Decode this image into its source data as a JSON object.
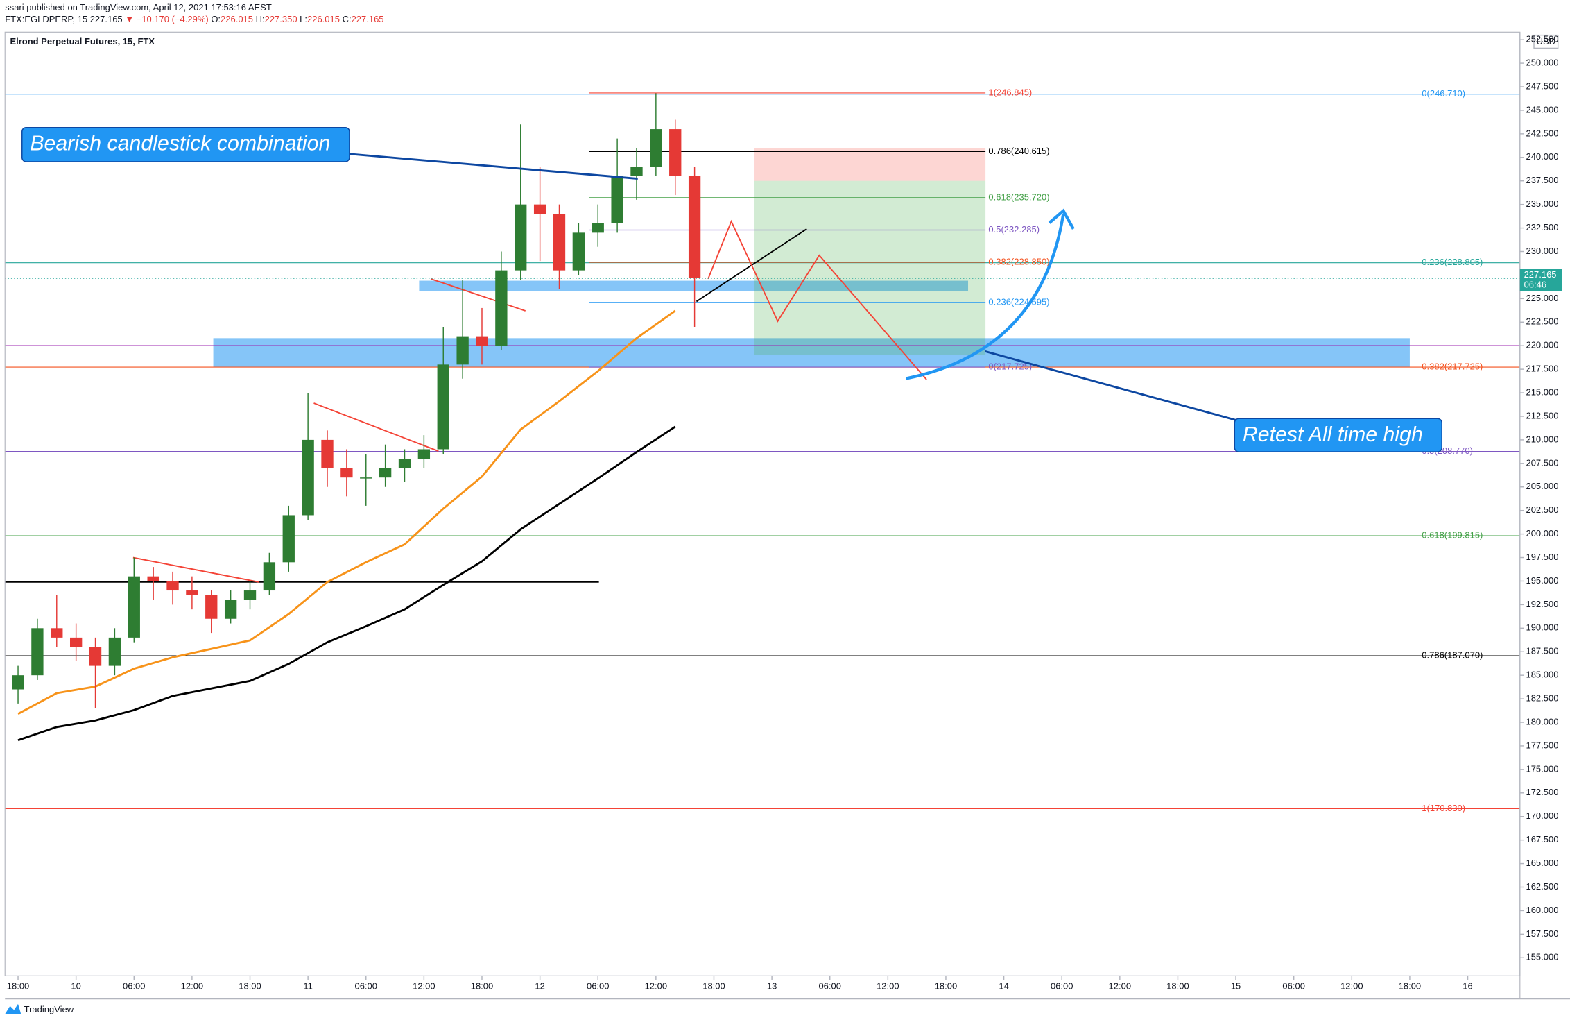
{
  "header": {
    "publisher": "ssari published on TradingView.com, April 12, 2021 17:53:16 AEST",
    "symbol": "FTX:EGLDPERP, 15",
    "price": "227.165",
    "change": "▼ −10.170 (−4.29%)",
    "ohlc": [
      {
        "label": "O:",
        "value": "226.015"
      },
      {
        "label": "H:",
        "value": "227.350"
      },
      {
        "label": "L:",
        "value": "226.015"
      },
      {
        "label": "C:",
        "value": "227.165"
      }
    ]
  },
  "footer": {
    "brand": "TradingView"
  },
  "chart_data": {
    "type": "candlestick",
    "title": "Elrond Perpetual Futures, 15, FTX",
    "currency": "USD",
    "last_price": 227.165,
    "countdown": "06:46",
    "up_color": "#2e7d32",
    "down_color": "#e53935",
    "x": [
      18,
      20,
      22,
      24,
      26,
      28,
      30,
      32,
      34,
      36,
      38,
      40,
      42,
      44,
      46,
      48,
      50,
      52,
      54,
      56,
      58,
      60,
      62,
      64,
      66,
      68,
      70,
      72,
      74,
      76,
      78,
      80,
      82,
      84,
      86,
      88
    ],
    "open": [
      183.5,
      185,
      190,
      189,
      188,
      186,
      189,
      195.5,
      195,
      194,
      193.5,
      191,
      193,
      194,
      197,
      202,
      210,
      207,
      206,
      206,
      207,
      208,
      209,
      218,
      221,
      220,
      228,
      235,
      234,
      228,
      232,
      233,
      238,
      239,
      243,
      238
    ],
    "high": [
      186,
      191,
      193.5,
      190.5,
      189,
      190,
      197.5,
      196.5,
      196,
      195.5,
      194,
      194,
      195,
      198,
      203,
      215,
      211,
      209,
      208.5,
      209.5,
      209,
      210.5,
      222,
      227,
      224,
      230,
      243.5,
      239,
      235,
      233,
      235,
      242,
      241,
      246.8,
      244,
      239
    ],
    "low": [
      182,
      184.5,
      188,
      186.5,
      181.5,
      185,
      188.5,
      193,
      192.5,
      192,
      189.5,
      190.5,
      192,
      193.5,
      196,
      201.5,
      205,
      204,
      203,
      205,
      205.5,
      207,
      208.5,
      216.5,
      218,
      219.5,
      227,
      229,
      226,
      227.5,
      230.5,
      232,
      235.5,
      238,
      236,
      222
    ],
    "close": [
      185,
      190,
      189,
      188,
      186,
      189,
      195.5,
      195,
      194,
      193.5,
      191,
      193,
      194,
      197,
      202,
      210,
      207,
      206,
      206,
      207,
      208,
      209,
      218,
      221,
      220,
      228,
      235,
      234,
      228,
      232,
      233,
      238,
      239,
      243,
      238,
      227.165
    ],
    "xlim": [
      16.65,
      173.4
    ],
    "ylim": [
      153.08,
      253.3
    ],
    "xticks": [
      {
        "value": 18,
        "label": "18:00"
      },
      {
        "value": 24,
        "label": "10"
      },
      {
        "value": 30,
        "label": "06:00"
      },
      {
        "value": 36,
        "label": "12:00"
      },
      {
        "value": 42,
        "label": "18:00"
      },
      {
        "value": 48,
        "label": "11"
      },
      {
        "value": 54,
        "label": "06:00"
      },
      {
        "value": 60,
        "label": "12:00"
      },
      {
        "value": 66,
        "label": "18:00"
      },
      {
        "value": 72,
        "label": "12"
      },
      {
        "value": 78,
        "label": "06:00"
      },
      {
        "value": 84,
        "label": "12:00"
      },
      {
        "value": 90,
        "label": "18:00"
      },
      {
        "value": 96,
        "label": "13"
      },
      {
        "value": 102,
        "label": "06:00"
      },
      {
        "value": 108,
        "label": "12:00"
      },
      {
        "value": 114,
        "label": "18:00"
      },
      {
        "value": 120,
        "label": "14"
      },
      {
        "value": 126,
        "label": "06:00"
      },
      {
        "value": 132,
        "label": "12:00"
      },
      {
        "value": 138,
        "label": "18:00"
      },
      {
        "value": 144,
        "label": "15"
      },
      {
        "value": 150,
        "label": "06:00"
      },
      {
        "value": 156,
        "label": "12:00"
      },
      {
        "value": 162,
        "label": "18:00"
      },
      {
        "value": 168,
        "label": "16"
      }
    ],
    "yticks": [
      {
        "value": 155,
        "label": "155.000"
      },
      {
        "value": 157.5,
        "label": "157.500"
      },
      {
        "value": 160,
        "label": "160.000"
      },
      {
        "value": 162.5,
        "label": "162.500"
      },
      {
        "value": 165,
        "label": "165.000"
      },
      {
        "value": 167.5,
        "label": "167.500"
      },
      {
        "value": 170,
        "label": "170.000"
      },
      {
        "value": 172.5,
        "label": "172.500"
      },
      {
        "value": 175,
        "label": "175.000"
      },
      {
        "value": 177.5,
        "label": "177.500"
      },
      {
        "value": 180,
        "label": "180.000"
      },
      {
        "value": 182.5,
        "label": "182.500"
      },
      {
        "value": 185,
        "label": "185.000"
      },
      {
        "value": 187.5,
        "label": "187.500"
      },
      {
        "value": 190,
        "label": "190.000"
      },
      {
        "value": 192.5,
        "label": "192.500"
      },
      {
        "value": 195,
        "label": "195.000"
      },
      {
        "value": 197.5,
        "label": "197.500"
      },
      {
        "value": 200,
        "label": "200.000"
      },
      {
        "value": 202.5,
        "label": "202.500"
      },
      {
        "value": 205,
        "label": "205.000"
      },
      {
        "value": 207.5,
        "label": "207.500"
      },
      {
        "value": 210,
        "label": "210.000"
      },
      {
        "value": 212.5,
        "label": "212.500"
      },
      {
        "value": 215,
        "label": "215.000"
      },
      {
        "value": 217.5,
        "label": "217.500"
      },
      {
        "value": 220,
        "label": "220.000"
      },
      {
        "value": 222.5,
        "label": "222.500"
      },
      {
        "value": 225,
        "label": "225.000"
      },
      {
        "value": 227.5,
        "label": "227.500"
      },
      {
        "value": 230,
        "label": "230.000"
      },
      {
        "value": 232.5,
        "label": "232.500"
      },
      {
        "value": 235,
        "label": "235.000"
      },
      {
        "value": 237.5,
        "label": "237.500"
      },
      {
        "value": 240,
        "label": "240.000"
      },
      {
        "value": 242.5,
        "label": "242.500"
      },
      {
        "value": 245,
        "label": "245.000"
      },
      {
        "value": 247.5,
        "label": "247.500"
      },
      {
        "value": 250,
        "label": "250.000"
      },
      {
        "value": 252.5,
        "label": "252.500"
      }
    ],
    "moving_averages": [
      {
        "color": "#f7931a",
        "x": [
          18,
          22,
          26,
          30,
          34,
          38,
          42,
          46,
          50,
          54,
          58,
          62,
          66,
          70,
          74,
          78,
          82,
          86
        ],
        "values": [
          180.9,
          183.1,
          183.8,
          185.7,
          186.9,
          187.8,
          188.7,
          191.5,
          194.9,
          197.0,
          198.9,
          202.7,
          206.1,
          211.1,
          214.1,
          217.3,
          220.8,
          223.7
        ]
      },
      {
        "color": "#000000",
        "x": [
          18,
          22,
          26,
          30,
          34,
          42,
          46,
          50,
          54,
          58,
          62,
          66,
          70,
          74,
          78,
          82,
          86
        ],
        "values": [
          178.1,
          179.5,
          180.2,
          181.3,
          182.8,
          184.4,
          186.2,
          188.5,
          190.2,
          192.0,
          194.6,
          197.1,
          200.5,
          203.2,
          205.9,
          208.7,
          211.4
        ]
      }
    ],
    "zones": [
      {
        "color": "rgba(33,150,243,0.55)",
        "x": [
          38.2,
          162
        ],
        "values": [
          217.7,
          220.8
        ]
      },
      {
        "color": "rgba(33,150,243,0.55)",
        "x": [
          59.5,
          116.3
        ],
        "values": [
          225.8,
          226.9
        ]
      },
      {
        "color": "rgba(244,67,54,0.22)",
        "x": [
          94.2,
          118.1
        ],
        "values": [
          237.5,
          241
        ]
      },
      {
        "color": "rgba(76,175,80,0.25)",
        "x": [
          94.2,
          118.1
        ],
        "values": [
          219,
          237.5
        ]
      }
    ],
    "horizontal_lines": [
      {
        "color": "#9c27b0",
        "value": 220
      },
      {
        "color": "#000000",
        "value": 194.9,
        "x": [
          16.65,
          78.1
        ]
      }
    ],
    "fib_levels": [
      {
        "levels": [
          {
            "value": 246.71,
            "label": "0(246.710)",
            "color": "#2196f3"
          },
          {
            "value": 228.805,
            "label": "0.236(228.805)",
            "color": "#26a69a"
          },
          {
            "value": 217.725,
            "label": "0.382(217.725)",
            "color": "#f4511e"
          },
          {
            "value": 208.77,
            "label": "0.5(208.770)",
            "color": "#7e57c2"
          },
          {
            "value": 199.815,
            "label": "0.618(199.815)",
            "color": "#43a047"
          },
          {
            "value": 187.07,
            "label": "0.786(187.070)",
            "color": "#000000"
          },
          {
            "value": 170.83,
            "label": "1(170.830)",
            "color": "#f44336"
          }
        ]
      },
      {
        "x": [
          77.1,
          118.1
        ],
        "levels": [
          {
            "value": 246.845,
            "label": "1(246.845)",
            "color": "#f44336"
          },
          {
            "value": 240.615,
            "label": "0.786(240.615)",
            "color": "#000000"
          },
          {
            "value": 235.72,
            "label": "0.618(235.720)",
            "color": "#43a047"
          },
          {
            "value": 232.285,
            "label": "0.5(232.285)",
            "color": "#7e57c2"
          },
          {
            "value": 228.85,
            "label": "0.382(228.850)",
            "color": "#f4511e"
          },
          {
            "value": 224.595,
            "label": "0.236(224.595)",
            "color": "#2196f3"
          },
          {
            "value": 217.725,
            "label": "0(217.725)",
            "color": "#7e57c2"
          }
        ]
      }
    ],
    "trend_lines": [
      {
        "color": "#f44336",
        "x": [
          29.9,
          42.9
        ],
        "values": [
          197.5,
          194.9
        ]
      },
      {
        "color": "#f44336",
        "x": [
          48.6,
          61.5
        ],
        "values": [
          213.9,
          208.8
        ]
      },
      {
        "color": "#f44336",
        "x": [
          60.7,
          70.5
        ],
        "values": [
          227.1,
          223.7
        ]
      },
      {
        "color": "#000000",
        "x": [
          88.2,
          99.6
        ],
        "values": [
          224.7,
          232.4
        ]
      },
      {
        "color": "#f44336",
        "x": [
          89.4,
          91.8,
          96.6,
          100.9,
          112.0
        ],
        "values": [
          227.1,
          233.2,
          222.6,
          229.6,
          216.4
        ]
      }
    ],
    "annotations": [
      {
        "text": "Bearish candlestick combination"
      },
      {
        "text": "Retest All time high"
      }
    ]
  }
}
